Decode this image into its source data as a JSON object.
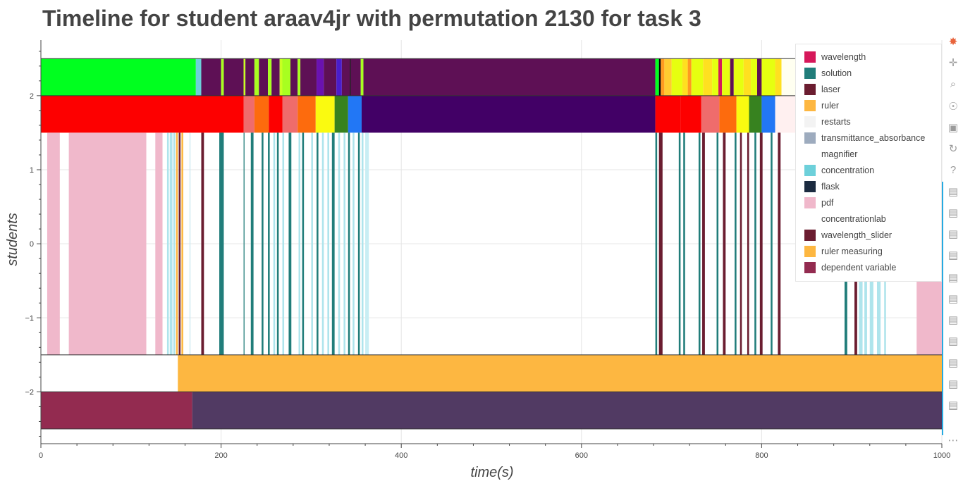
{
  "chart_data": {
    "type": "timeline",
    "title": "Timeline for student araav4jr with permutation 2130 for task 3",
    "xlabel": "time(s)",
    "ylabel": "students",
    "xlim": [
      0,
      1000
    ],
    "ylim": [
      -2.7,
      2.75
    ],
    "x_ticks": [
      0,
      200,
      400,
      600,
      800,
      1000
    ],
    "y_ticks": [
      2,
      1,
      0,
      -1,
      -2
    ],
    "y_tick_labels": [
      "2",
      "1",
      "0",
      "−1",
      "−2"
    ],
    "grid": true,
    "legend_position": "top-right",
    "legend": [
      {
        "label": "wavelength",
        "color": "#d6185a"
      },
      {
        "label": "solution",
        "color": "#217d7a"
      },
      {
        "label": "laser",
        "color": "#6b1d30"
      },
      {
        "label": "ruler",
        "color": "#fdb741"
      },
      {
        "label": "restarts",
        "color": "#f3f3f3"
      },
      {
        "label": "transmittance_absorbance",
        "color": "#9dabbe"
      },
      {
        "label": "magnifier",
        "color": "#ffffff"
      },
      {
        "label": "concentration",
        "color": "#6dd0da"
      },
      {
        "label": "flask",
        "color": "#1b2b40"
      },
      {
        "label": "pdf",
        "color": "#f0b8cb"
      },
      {
        "label": "concentrationlab",
        "color": "#ffffff"
      },
      {
        "label": "wavelength_slider",
        "color": "#6b1d30"
      },
      {
        "label": "ruler measuring",
        "color": "#fdb741"
      },
      {
        "label": "dependent variable",
        "color": "#932b50"
      }
    ],
    "rows": [
      {
        "y": [
          2,
          2.5
        ],
        "segments": [
          [
            0,
            172,
            "#00ff1f"
          ],
          [
            172,
            178,
            "#6dd0da"
          ],
          [
            178,
            200,
            "#5e1055"
          ],
          [
            200,
            203,
            "#a8ff20"
          ],
          [
            203,
            225,
            "#5e1055"
          ],
          [
            225,
            227,
            "#c9ff22"
          ],
          [
            227,
            237,
            "#5e1055"
          ],
          [
            237,
            242,
            "#a8ff20"
          ],
          [
            242,
            252,
            "#5e1055"
          ],
          [
            252,
            256,
            "#a8ff20"
          ],
          [
            256,
            265,
            "#5e1055"
          ],
          [
            265,
            268,
            "#c9ff22"
          ],
          [
            268,
            277,
            "#a8ff20"
          ],
          [
            277,
            285,
            "#5e1055"
          ],
          [
            285,
            288,
            "#a8ff20"
          ],
          [
            288,
            306,
            "#5e1055"
          ],
          [
            306,
            314,
            "#6a12b0"
          ],
          [
            314,
            328,
            "#5e1055"
          ],
          [
            328,
            334,
            "#4a1dcc"
          ],
          [
            334,
            343,
            "#5e1055"
          ],
          [
            343,
            344,
            "#000000"
          ],
          [
            344,
            355,
            "#5e1055"
          ],
          [
            355,
            358,
            "#a8ff20"
          ],
          [
            358,
            682,
            "#5e1055"
          ],
          [
            682,
            686,
            "#00ff1f"
          ],
          [
            686,
            688,
            "#000000"
          ],
          [
            688,
            692,
            "#ff9a20"
          ],
          [
            692,
            700,
            "#ffcc30"
          ],
          [
            700,
            712,
            "#e6ff10"
          ],
          [
            712,
            718,
            "#ffe020"
          ],
          [
            718,
            722,
            "#ff9a20"
          ],
          [
            722,
            735,
            "#e6ff10"
          ],
          [
            735,
            745,
            "#ffe020"
          ],
          [
            745,
            752,
            "#e6ff10"
          ],
          [
            752,
            756,
            "#d6185a"
          ],
          [
            756,
            765,
            "#e6ff10"
          ],
          [
            765,
            769,
            "#5e1055"
          ],
          [
            769,
            780,
            "#e6ff10"
          ],
          [
            780,
            788,
            "#ffe020"
          ],
          [
            788,
            795,
            "#e6ff10"
          ],
          [
            795,
            800,
            "#5e1055"
          ],
          [
            800,
            815,
            "#e6ff10"
          ],
          [
            815,
            822,
            "#ffe020"
          ],
          [
            822,
            1000,
            "#fffff0"
          ]
        ]
      },
      {
        "y": [
          1.5,
          2
        ],
        "segments": [
          [
            0,
            225,
            "#fd0000"
          ],
          [
            225,
            237,
            "#ef6c6c"
          ],
          [
            237,
            253,
            "#fd6b0d"
          ],
          [
            253,
            268,
            "#fd0000"
          ],
          [
            268,
            285,
            "#ef6c6c"
          ],
          [
            285,
            305,
            "#fd6b0d"
          ],
          [
            305,
            326,
            "#fafa10"
          ],
          [
            326,
            341,
            "#37821f"
          ],
          [
            341,
            356,
            "#2277f5"
          ],
          [
            356,
            682,
            "#420066"
          ],
          [
            682,
            710,
            "#fd0000"
          ],
          [
            710,
            733,
            "#fd0000"
          ],
          [
            733,
            753,
            "#ef6c6c"
          ],
          [
            753,
            772,
            "#fd6b0d"
          ],
          [
            772,
            786,
            "#fafa10"
          ],
          [
            786,
            800,
            "#37821f"
          ],
          [
            800,
            815,
            "#2277f5"
          ],
          [
            815,
            1000,
            "#fff0f0"
          ]
        ]
      },
      {
        "y": [
          -1.5,
          1.5
        ],
        "segments": [
          [
            7,
            21,
            "#f0b8cb"
          ],
          [
            31,
            117,
            "#f0b8cb"
          ],
          [
            127,
            135,
            "#f0b8cb"
          ],
          [
            140,
            142,
            "#aee4ec"
          ],
          [
            143,
            146,
            "#aee4ec"
          ],
          [
            147,
            149,
            "#aee4ec"
          ],
          [
            150,
            152,
            "#fdb741"
          ],
          [
            153,
            155,
            "#6b1d30"
          ],
          [
            156,
            158,
            "#fdb741"
          ],
          [
            165,
            166,
            "#c8e8f0"
          ],
          [
            178,
            181,
            "#6b1d30"
          ],
          [
            198,
            203,
            "#217d7a"
          ],
          [
            225,
            226,
            "#217d7a"
          ],
          [
            233,
            236,
            "#217d7a"
          ],
          [
            245,
            247,
            "#217d7a"
          ],
          [
            252,
            254,
            "#217d7a"
          ],
          [
            258,
            260,
            "#aee4ec"
          ],
          [
            262,
            264,
            "#217d7a"
          ],
          [
            268,
            270,
            "#aee4ec"
          ],
          [
            275,
            278,
            "#217d7a"
          ],
          [
            286,
            288,
            "#aee4ec"
          ],
          [
            290,
            292,
            "#217d7a"
          ],
          [
            300,
            302,
            "#aee4ec"
          ],
          [
            306,
            308,
            "#217d7a"
          ],
          [
            312,
            314,
            "#aee4ec"
          ],
          [
            318,
            320,
            "#aee4ec"
          ],
          [
            323,
            326,
            "#217d7a"
          ],
          [
            330,
            332,
            "#aee4ec"
          ],
          [
            336,
            338,
            "#aee4ec"
          ],
          [
            341,
            343,
            "#217d7a"
          ],
          [
            346,
            348,
            "#aee4ec"
          ],
          [
            352,
            354,
            "#217d7a"
          ],
          [
            356,
            358,
            "#aee4ec"
          ],
          [
            360,
            364,
            "#c8eef4"
          ],
          [
            682,
            684,
            "#217d7a"
          ],
          [
            686,
            690,
            "#6b1d30"
          ],
          [
            708,
            710,
            "#217d7a"
          ],
          [
            713,
            715,
            "#217d7a"
          ],
          [
            730,
            732,
            "#217d7a"
          ],
          [
            734,
            737,
            "#6b1d30"
          ],
          [
            750,
            752,
            "#217d7a"
          ],
          [
            757,
            760,
            "#6b1d30"
          ],
          [
            770,
            772,
            "#217d7a"
          ],
          [
            776,
            778,
            "#6b1d30"
          ],
          [
            784,
            786,
            "#6b1d30"
          ],
          [
            792,
            794,
            "#217d7a"
          ],
          [
            798,
            801,
            "#6b1d30"
          ],
          [
            810,
            812,
            "#217d7a"
          ],
          [
            818,
            821,
            "#6b1d30"
          ],
          [
            892,
            895,
            "#217d7a"
          ],
          [
            903,
            906,
            "#6b1d30"
          ],
          [
            908,
            912,
            "#aee4ec"
          ],
          [
            914,
            917,
            "#aee4ec"
          ],
          [
            920,
            924,
            "#aee4ec"
          ],
          [
            928,
            932,
            "#aee4ec"
          ],
          [
            936,
            938,
            "#aee4ec"
          ],
          [
            972,
            1000,
            "#f0b8cb"
          ]
        ]
      },
      {
        "y": [
          -2,
          -1.5
        ],
        "segments": [
          [
            152,
            1000,
            "#fdb741"
          ]
        ]
      },
      {
        "y": [
          -2.5,
          -2
        ],
        "segments": [
          [
            0,
            168,
            "#932b50"
          ],
          [
            168,
            1000,
            "#513a63"
          ]
        ]
      }
    ]
  },
  "toolbar": [
    {
      "name": "bokeh-logo-icon",
      "glyph": "✸"
    },
    {
      "name": "pan-icon",
      "glyph": "✛"
    },
    {
      "name": "box-zoom-icon",
      "glyph": "⌕"
    },
    {
      "name": "wheel-zoom-icon",
      "glyph": "☉"
    },
    {
      "name": "save-icon",
      "glyph": "▣"
    },
    {
      "name": "reset-icon",
      "glyph": "↻"
    },
    {
      "name": "help-icon",
      "glyph": "?"
    },
    {
      "name": "hover-icon",
      "glyph": "▤"
    },
    {
      "name": "hover-icon",
      "glyph": "▤"
    },
    {
      "name": "hover-icon",
      "glyph": "▤"
    },
    {
      "name": "hover-icon",
      "glyph": "▤"
    },
    {
      "name": "hover-icon",
      "glyph": "▤"
    },
    {
      "name": "hover-icon",
      "glyph": "▤"
    },
    {
      "name": "hover-icon",
      "glyph": "▤"
    },
    {
      "name": "hover-icon",
      "glyph": "▤"
    },
    {
      "name": "hover-icon",
      "glyph": "▤"
    },
    {
      "name": "hover-icon",
      "glyph": "▤"
    },
    {
      "name": "hover-icon",
      "glyph": "▤"
    },
    {
      "name": "more-icon",
      "glyph": "⋯"
    }
  ]
}
